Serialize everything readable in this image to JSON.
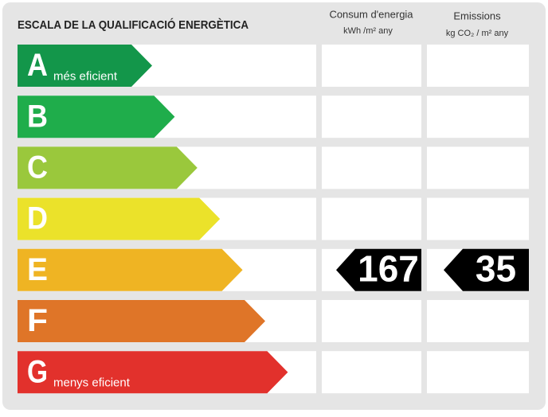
{
  "title": "ESCALA DE LA QUALIFICACIÓ ENERGÈTICA",
  "columns": [
    {
      "title": "Consum d'energia",
      "unit": "kWh /m² any"
    },
    {
      "title": "Emissions",
      "unit": "kg CO₂ / m² any"
    }
  ],
  "grades": [
    {
      "letter": "A",
      "label": "més eficient",
      "color": "#13964a"
    },
    {
      "letter": "B",
      "color": "#1fad4b"
    },
    {
      "letter": "C",
      "color": "#9ac83c"
    },
    {
      "letter": "D",
      "color": "#ebe22a"
    },
    {
      "letter": "E",
      "color": "#efb423",
      "consumption": 167,
      "emissions": 35
    },
    {
      "letter": "F",
      "color": "#df7528"
    },
    {
      "letter": "G",
      "label": "menys eficient",
      "color": "#e2312c"
    }
  ]
}
